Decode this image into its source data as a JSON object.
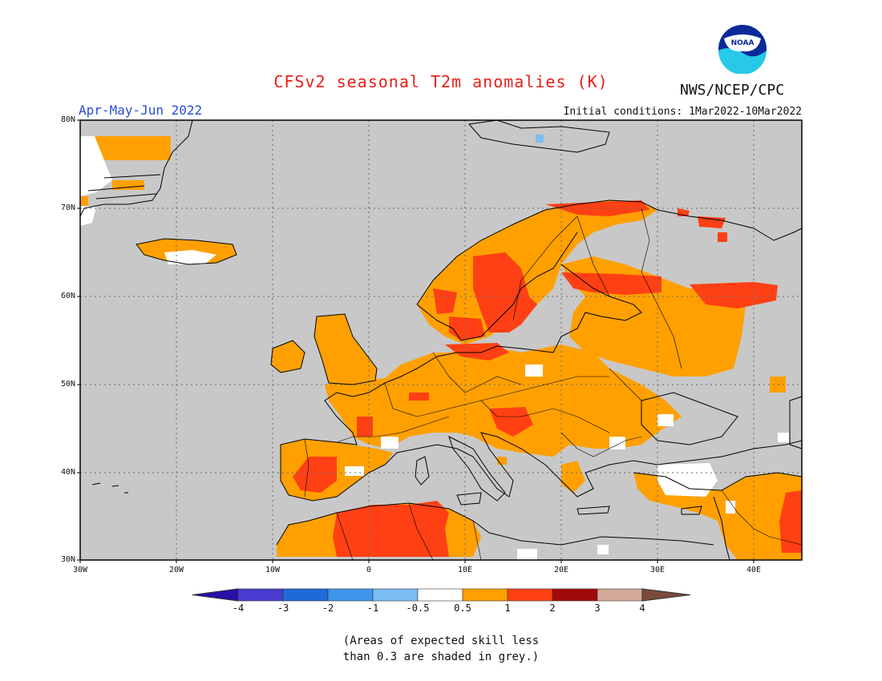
{
  "title": "CFSv2 seasonal T2m anomalies (K)",
  "agency": "NWS/NCEP/CPC",
  "logo_text": "NOAA",
  "period": "Apr-May-Jun 2022",
  "initial_conditions": "Initial conditions: 1Mar2022-10Mar2022",
  "lat_labels": [
    "80N",
    "70N",
    "60N",
    "50N",
    "40N",
    "30N"
  ],
  "lon_labels": [
    "30W",
    "20W",
    "10W",
    "0",
    "10E",
    "20E",
    "30E",
    "40E"
  ],
  "colorbar": {
    "labels": [
      "-4",
      "-3",
      "-2",
      "-1",
      "-0.5",
      "0.5",
      "1",
      "2",
      "3",
      "4"
    ],
    "colors": [
      "#2a0fa8",
      "#4a3bd0",
      "#1f6ad8",
      "#3f95ec",
      "#7dbdf4",
      "#ffffff",
      "#ffa000",
      "#ff4014",
      "#a00a0a",
      "#d3a99a",
      "#7a4a3a"
    ]
  },
  "note_line1": "(Areas of expected skill less",
  "note_line2": "than 0.3 are shaded in grey.)",
  "colors": {
    "grey": "#c8c8c8",
    "land_line": "#000000",
    "grid": "#6a6a6a"
  }
}
